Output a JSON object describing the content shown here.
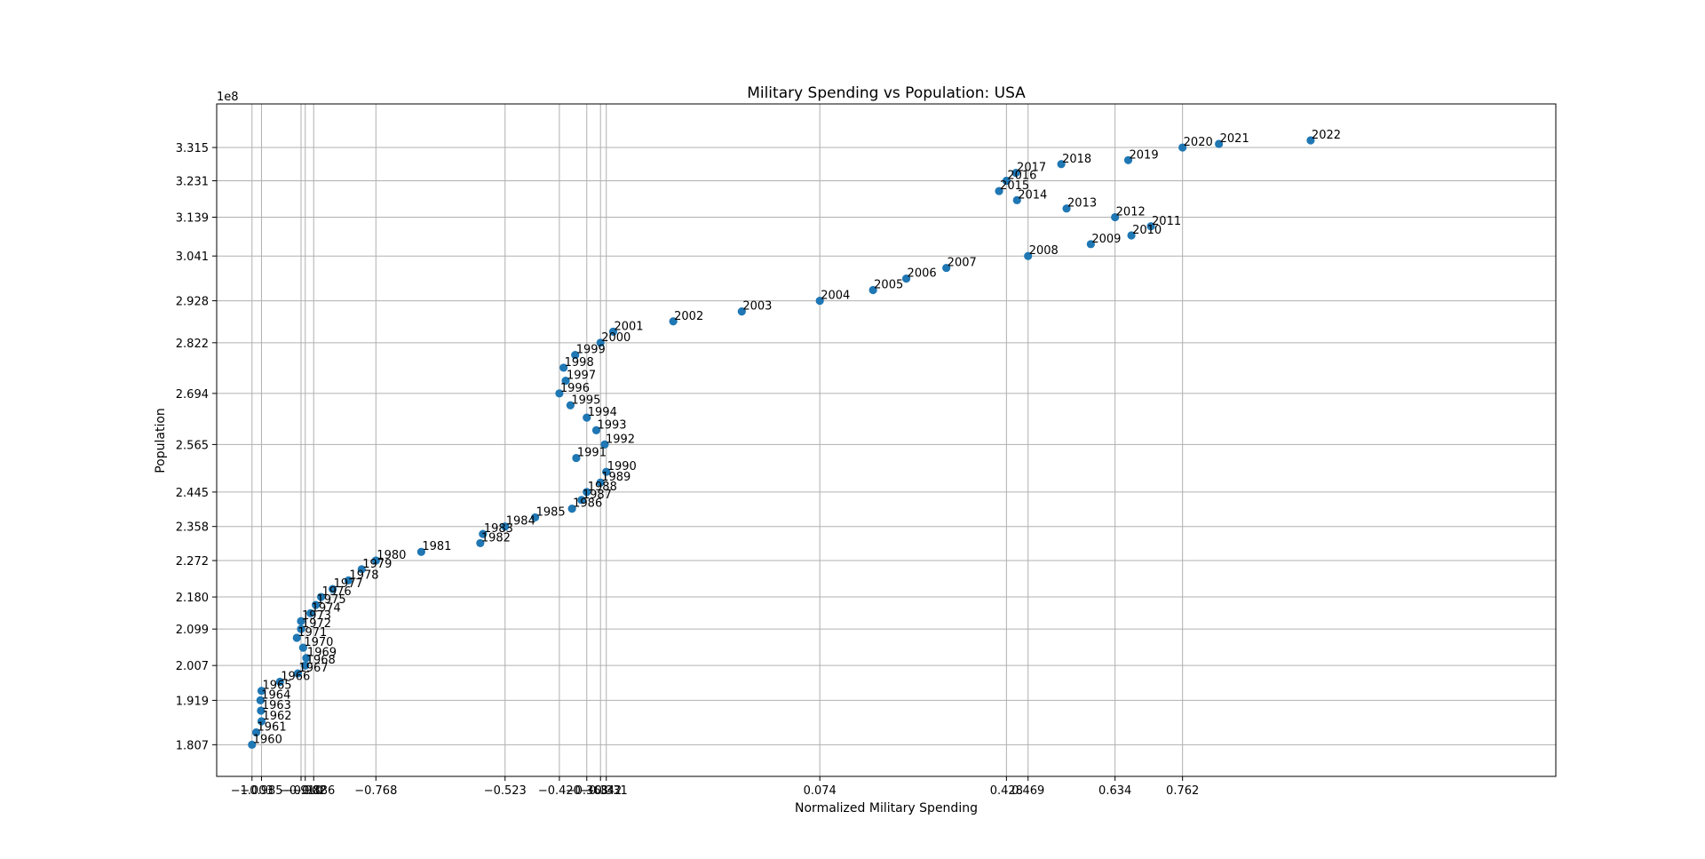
{
  "chart_data": {
    "type": "scatter",
    "title": "Military Spending vs Population: USA",
    "xlabel": "Normalized Military Spending",
    "ylabel": "Population",
    "y_offset_text": "1e8",
    "xlim": [
      -1.07,
      1.47
    ],
    "ylim": [
      1.727,
      3.425
    ],
    "grid": true,
    "marker_color": "#1f77b4",
    "x_ticks": [
      {
        "value": -1.003,
        "label": "−1.003"
      },
      {
        "value": -0.985,
        "label": "−0.985"
      },
      {
        "value": -0.91,
        "label": "−0.910"
      },
      {
        "value": -0.902,
        "label": "−0.902"
      },
      {
        "value": -0.886,
        "label": "−0.886"
      },
      {
        "value": -0.768,
        "label": "−0.768"
      },
      {
        "value": -0.523,
        "label": "−0.523"
      },
      {
        "value": -0.42,
        "label": "−0.420"
      },
      {
        "value": -0.368,
        "label": "−0.368"
      },
      {
        "value": -0.342,
        "label": "−0.342"
      },
      {
        "value": -0.331,
        "label": "−0.331"
      },
      {
        "value": 0.074,
        "label": "0.074"
      },
      {
        "value": 0.428,
        "label": "0.428"
      },
      {
        "value": 0.469,
        "label": "0.469"
      },
      {
        "value": 0.634,
        "label": "0.634"
      },
      {
        "value": 0.762,
        "label": "0.762"
      }
    ],
    "y_ticks": [
      {
        "value": 1.807,
        "label": "1.807"
      },
      {
        "value": 1.919,
        "label": "1.919"
      },
      {
        "value": 2.007,
        "label": "2.007"
      },
      {
        "value": 2.099,
        "label": "2.099"
      },
      {
        "value": 2.18,
        "label": "2.180"
      },
      {
        "value": 2.272,
        "label": "2.272"
      },
      {
        "value": 2.358,
        "label": "2.358"
      },
      {
        "value": 2.445,
        "label": "2.445"
      },
      {
        "value": 2.565,
        "label": "2.565"
      },
      {
        "value": 2.694,
        "label": "2.694"
      },
      {
        "value": 2.822,
        "label": "2.822"
      },
      {
        "value": 2.928,
        "label": "2.928"
      },
      {
        "value": 3.041,
        "label": "3.041"
      },
      {
        "value": 3.139,
        "label": "3.139"
      },
      {
        "value": 3.231,
        "label": "3.231"
      },
      {
        "value": 3.315,
        "label": "3.315"
      }
    ],
    "points": [
      {
        "label": "1960",
        "x": -1.003,
        "y": 1.807
      },
      {
        "label": "1961",
        "x": -0.995,
        "y": 1.838
      },
      {
        "label": "1962",
        "x": -0.985,
        "y": 1.866
      },
      {
        "label": "1963",
        "x": -0.986,
        "y": 1.893
      },
      {
        "label": "1964",
        "x": -0.987,
        "y": 1.919
      },
      {
        "label": "1965",
        "x": -0.985,
        "y": 1.943
      },
      {
        "label": "1966",
        "x": -0.95,
        "y": 1.966
      },
      {
        "label": "1967",
        "x": -0.916,
        "y": 1.987
      },
      {
        "label": "1968",
        "x": -0.902,
        "y": 2.007
      },
      {
        "label": "1969",
        "x": -0.9,
        "y": 2.026
      },
      {
        "label": "1970",
        "x": -0.906,
        "y": 2.052
      },
      {
        "label": "1971",
        "x": -0.918,
        "y": 2.077
      },
      {
        "label": "1972",
        "x": -0.91,
        "y": 2.099
      },
      {
        "label": "1973",
        "x": -0.91,
        "y": 2.119
      },
      {
        "label": "1974",
        "x": -0.892,
        "y": 2.139
      },
      {
        "label": "1975",
        "x": -0.882,
        "y": 2.16
      },
      {
        "label": "1976",
        "x": -0.872,
        "y": 2.18
      },
      {
        "label": "1977",
        "x": -0.85,
        "y": 2.2
      },
      {
        "label": "1978",
        "x": -0.82,
        "y": 2.222
      },
      {
        "label": "1979",
        "x": -0.795,
        "y": 2.25
      },
      {
        "label": "1980",
        "x": -0.768,
        "y": 2.272
      },
      {
        "label": "1981",
        "x": -0.682,
        "y": 2.294
      },
      {
        "label": "1982",
        "x": -0.57,
        "y": 2.316
      },
      {
        "label": "1983",
        "x": -0.565,
        "y": 2.339
      },
      {
        "label": "1984",
        "x": -0.523,
        "y": 2.358
      },
      {
        "label": "1985",
        "x": -0.466,
        "y": 2.381
      },
      {
        "label": "1986",
        "x": -0.396,
        "y": 2.403
      },
      {
        "label": "1987",
        "x": -0.378,
        "y": 2.425
      },
      {
        "label": "1988",
        "x": -0.368,
        "y": 2.445
      },
      {
        "label": "1989",
        "x": -0.342,
        "y": 2.469
      },
      {
        "label": "1990",
        "x": -0.331,
        "y": 2.496
      },
      {
        "label": "1991",
        "x": -0.388,
        "y": 2.531
      },
      {
        "label": "1992",
        "x": -0.334,
        "y": 2.565
      },
      {
        "label": "1993",
        "x": -0.35,
        "y": 2.601
      },
      {
        "label": "1994",
        "x": -0.368,
        "y": 2.633
      },
      {
        "label": "1995",
        "x": -0.399,
        "y": 2.664
      },
      {
        "label": "1996",
        "x": -0.42,
        "y": 2.694
      },
      {
        "label": "1997",
        "x": -0.408,
        "y": 2.726
      },
      {
        "label": "1998",
        "x": -0.412,
        "y": 2.759
      },
      {
        "label": "1999",
        "x": -0.39,
        "y": 2.791
      },
      {
        "label": "2000",
        "x": -0.342,
        "y": 2.822
      },
      {
        "label": "2001",
        "x": -0.318,
        "y": 2.85
      },
      {
        "label": "2002",
        "x": -0.204,
        "y": 2.876
      },
      {
        "label": "2003",
        "x": -0.074,
        "y": 2.901
      },
      {
        "label": "2004",
        "x": 0.074,
        "y": 2.928
      },
      {
        "label": "2005",
        "x": 0.175,
        "y": 2.955
      },
      {
        "label": "2006",
        "x": 0.238,
        "y": 2.984
      },
      {
        "label": "2007",
        "x": 0.314,
        "y": 3.011
      },
      {
        "label": "2008",
        "x": 0.469,
        "y": 3.041
      },
      {
        "label": "2009",
        "x": 0.588,
        "y": 3.071
      },
      {
        "label": "2010",
        "x": 0.665,
        "y": 3.093
      },
      {
        "label": "2011",
        "x": 0.702,
        "y": 3.116
      },
      {
        "label": "2012",
        "x": 0.634,
        "y": 3.139
      },
      {
        "label": "2013",
        "x": 0.542,
        "y": 3.161
      },
      {
        "label": "2014",
        "x": 0.448,
        "y": 3.182
      },
      {
        "label": "2015",
        "x": 0.414,
        "y": 3.205
      },
      {
        "label": "2016",
        "x": 0.428,
        "y": 3.231
      },
      {
        "label": "2017",
        "x": 0.446,
        "y": 3.251
      },
      {
        "label": "2018",
        "x": 0.532,
        "y": 3.273
      },
      {
        "label": "2019",
        "x": 0.659,
        "y": 3.283
      },
      {
        "label": "2020",
        "x": 0.762,
        "y": 3.315
      },
      {
        "label": "2021",
        "x": 0.831,
        "y": 3.324
      },
      {
        "label": "2022",
        "x": 1.005,
        "y": 3.333
      }
    ]
  }
}
